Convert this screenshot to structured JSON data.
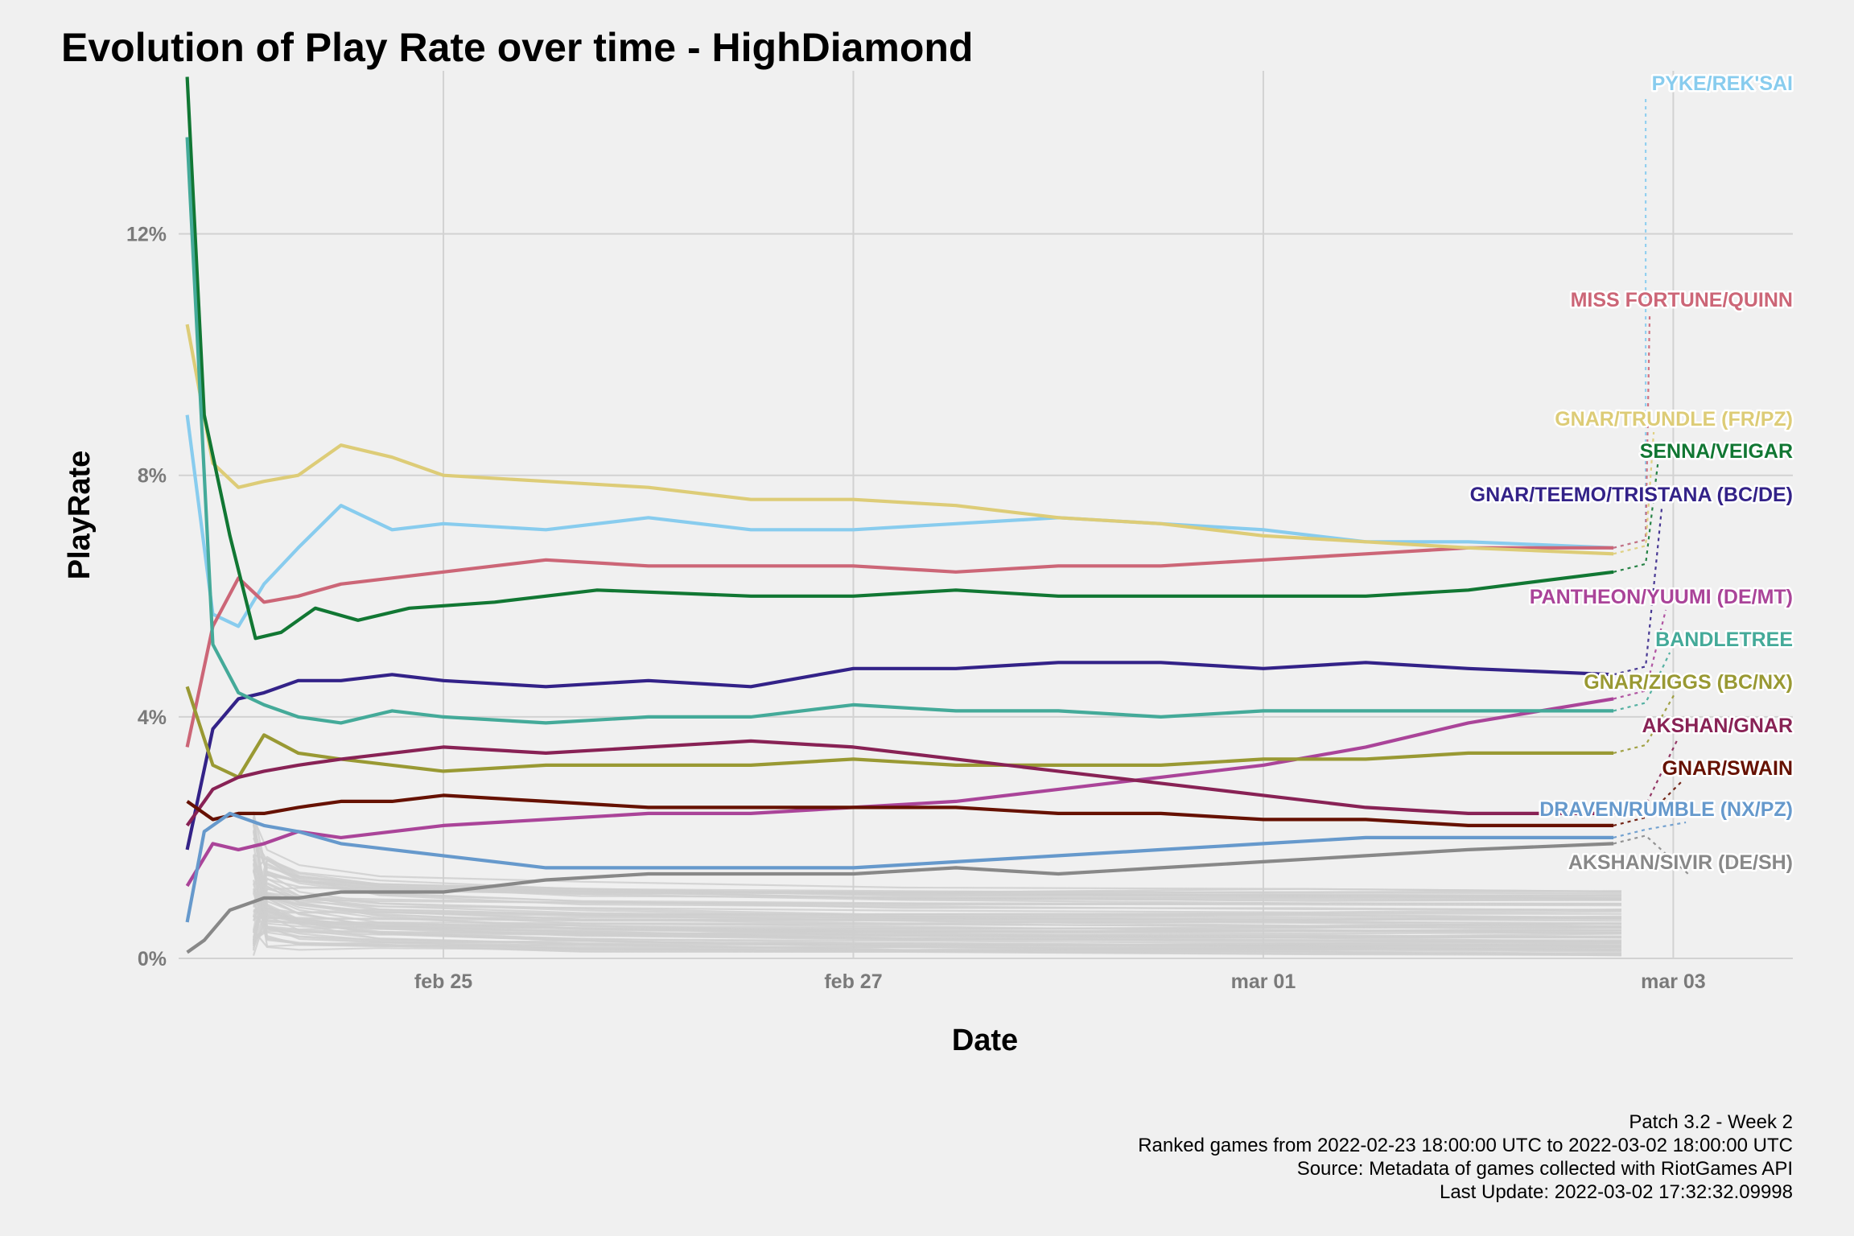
{
  "chart_data": {
    "type": "line",
    "title": "Evolution of Play Rate over time - HighDiamond",
    "xlabel": "Date",
    "ylabel": "PlayRate",
    "x_ticks": [
      "feb 25",
      "feb 27",
      "mar 01",
      "mar 03"
    ],
    "x_tick_dates": [
      "2022-02-25",
      "2022-02-27",
      "2022-03-01",
      "2022-03-03"
    ],
    "xlim": [
      "2022-02-23 17:00",
      "2022-03-03 14:00"
    ],
    "y_ticks": [
      "0%",
      "4%",
      "8%",
      "12%"
    ],
    "y_tick_values": [
      0,
      4,
      8,
      12
    ],
    "ylim": [
      0,
      14.7
    ],
    "grid": true,
    "legend": "direct labels at right",
    "series": [
      {
        "name": "PYKE/REK'SAI",
        "color": "#88ccee",
        "x": [
          "2022-02-23 18:00",
          "2022-02-23 21:00",
          "2022-02-24 00:00",
          "2022-02-24 03:00",
          "2022-02-24 07:00",
          "2022-02-24 12:00",
          "2022-02-24 18:00",
          "2022-02-25 00:00",
          "2022-02-25 12:00",
          "2022-02-26 00:00",
          "2022-02-26 12:00",
          "2022-02-27 00:00",
          "2022-02-27 12:00",
          "2022-02-28 00:00",
          "2022-02-28 12:00",
          "2022-03-01 00:00",
          "2022-03-01 12:00",
          "2022-03-02 00:00",
          "2022-03-02 17:00"
        ],
        "y": [
          9.0,
          5.7,
          5.5,
          6.2,
          6.8,
          7.5,
          7.1,
          7.2,
          7.1,
          7.3,
          7.1,
          7.1,
          7.2,
          7.3,
          7.2,
          7.1,
          6.9,
          6.9,
          6.8
        ]
      },
      {
        "name": "MISS FORTUNE/QUINN",
        "color": "#cc6677",
        "x": [
          "2022-02-23 18:00",
          "2022-02-23 21:00",
          "2022-02-24 00:00",
          "2022-02-24 03:00",
          "2022-02-24 07:00",
          "2022-02-24 12:00",
          "2022-02-24 18:00",
          "2022-02-25 00:00",
          "2022-02-25 12:00",
          "2022-02-26 00:00",
          "2022-02-26 12:00",
          "2022-02-27 00:00",
          "2022-02-27 12:00",
          "2022-02-28 00:00",
          "2022-02-28 12:00",
          "2022-03-01 00:00",
          "2022-03-01 12:00",
          "2022-03-02 00:00",
          "2022-03-02 17:00"
        ],
        "y": [
          3.5,
          5.5,
          6.3,
          5.9,
          6.0,
          6.2,
          6.3,
          6.4,
          6.6,
          6.5,
          6.5,
          6.5,
          6.4,
          6.5,
          6.5,
          6.6,
          6.7,
          6.8,
          6.8
        ]
      },
      {
        "name": "GNAR/TRUNDLE (FR/PZ)",
        "color": "#ddcc77",
        "x": [
          "2022-02-23 18:00",
          "2022-02-23 21:00",
          "2022-02-24 00:00",
          "2022-02-24 03:00",
          "2022-02-24 07:00",
          "2022-02-24 12:00",
          "2022-02-24 18:00",
          "2022-02-25 00:00",
          "2022-02-25 12:00",
          "2022-02-26 00:00",
          "2022-02-26 12:00",
          "2022-02-27 00:00",
          "2022-02-27 12:00",
          "2022-02-28 00:00",
          "2022-02-28 12:00",
          "2022-03-01 00:00",
          "2022-03-01 12:00",
          "2022-03-02 00:00",
          "2022-03-02 17:00"
        ],
        "y": [
          10.5,
          8.2,
          7.8,
          7.9,
          8.0,
          8.5,
          8.3,
          8.0,
          7.9,
          7.8,
          7.6,
          7.6,
          7.5,
          7.3,
          7.2,
          7.0,
          6.9,
          6.8,
          6.7
        ]
      },
      {
        "name": "SENNA/VEIGAR",
        "color": "#117733",
        "x": [
          "2022-02-23 18:00",
          "2022-02-23 20:00",
          "2022-02-23 23:00",
          "2022-02-24 02:00",
          "2022-02-24 05:00",
          "2022-02-24 09:00",
          "2022-02-24 14:00",
          "2022-02-24 20:00",
          "2022-02-25 06:00",
          "2022-02-25 18:00",
          "2022-02-26 12:00",
          "2022-02-27 00:00",
          "2022-02-27 12:00",
          "2022-02-28 00:00",
          "2022-02-28 12:00",
          "2022-03-01 00:00",
          "2022-03-01 12:00",
          "2022-03-02 00:00",
          "2022-03-02 17:00"
        ],
        "y": [
          14.6,
          9.0,
          7.0,
          5.3,
          5.4,
          5.8,
          5.6,
          5.8,
          5.9,
          6.1,
          6.0,
          6.0,
          6.1,
          6.0,
          6.0,
          6.0,
          6.0,
          6.1,
          6.4
        ]
      },
      {
        "name": "GNAR/TEEMO/TRISTANA (BC/DE)",
        "color": "#332288",
        "x": [
          "2022-02-23 18:00",
          "2022-02-23 21:00",
          "2022-02-24 00:00",
          "2022-02-24 03:00",
          "2022-02-24 07:00",
          "2022-02-24 12:00",
          "2022-02-24 18:00",
          "2022-02-25 00:00",
          "2022-02-25 12:00",
          "2022-02-26 00:00",
          "2022-02-26 12:00",
          "2022-02-27 00:00",
          "2022-02-27 12:00",
          "2022-02-28 00:00",
          "2022-02-28 12:00",
          "2022-03-01 00:00",
          "2022-03-01 12:00",
          "2022-03-02 00:00",
          "2022-03-02 17:00"
        ],
        "y": [
          1.8,
          3.8,
          4.3,
          4.4,
          4.6,
          4.6,
          4.7,
          4.6,
          4.5,
          4.6,
          4.5,
          4.8,
          4.8,
          4.9,
          4.9,
          4.8,
          4.9,
          4.8,
          4.7
        ]
      },
      {
        "name": "PANTHEON/YUUMI (DE/MT)",
        "color": "#aa4499",
        "x": [
          "2022-02-23 18:00",
          "2022-02-23 21:00",
          "2022-02-24 00:00",
          "2022-02-24 03:00",
          "2022-02-24 07:00",
          "2022-02-24 12:00",
          "2022-02-24 18:00",
          "2022-02-25 00:00",
          "2022-02-25 12:00",
          "2022-02-26 00:00",
          "2022-02-26 12:00",
          "2022-02-27 00:00",
          "2022-02-27 12:00",
          "2022-02-28 00:00",
          "2022-02-28 12:00",
          "2022-03-01 00:00",
          "2022-03-01 12:00",
          "2022-03-02 00:00",
          "2022-03-02 17:00"
        ],
        "y": [
          1.2,
          1.9,
          1.8,
          1.9,
          2.1,
          2.0,
          2.1,
          2.2,
          2.3,
          2.4,
          2.4,
          2.5,
          2.6,
          2.8,
          3.0,
          3.2,
          3.5,
          3.9,
          4.3
        ]
      },
      {
        "name": "BANDLETREE",
        "color": "#44aa99",
        "x": [
          "2022-02-23 18:00",
          "2022-02-23 21:00",
          "2022-02-24 00:00",
          "2022-02-24 03:00",
          "2022-02-24 07:00",
          "2022-02-24 12:00",
          "2022-02-24 18:00",
          "2022-02-25 00:00",
          "2022-02-25 12:00",
          "2022-02-26 00:00",
          "2022-02-26 12:00",
          "2022-02-27 00:00",
          "2022-02-27 12:00",
          "2022-02-28 00:00",
          "2022-02-28 12:00",
          "2022-03-01 00:00",
          "2022-03-01 12:00",
          "2022-03-02 00:00",
          "2022-03-02 17:00"
        ],
        "y": [
          13.6,
          5.2,
          4.4,
          4.2,
          4.0,
          3.9,
          4.1,
          4.0,
          3.9,
          4.0,
          4.0,
          4.2,
          4.1,
          4.1,
          4.0,
          4.1,
          4.1,
          4.1,
          4.1
        ]
      },
      {
        "name": "GNAR/ZIGGS (BC/NX)",
        "color": "#999933",
        "x": [
          "2022-02-23 18:00",
          "2022-02-23 21:00",
          "2022-02-24 00:00",
          "2022-02-24 03:00",
          "2022-02-24 07:00",
          "2022-02-24 12:00",
          "2022-02-24 18:00",
          "2022-02-25 00:00",
          "2022-02-25 12:00",
          "2022-02-26 00:00",
          "2022-02-26 12:00",
          "2022-02-27 00:00",
          "2022-02-27 12:00",
          "2022-02-28 00:00",
          "2022-02-28 12:00",
          "2022-03-01 00:00",
          "2022-03-01 12:00",
          "2022-03-02 00:00",
          "2022-03-02 17:00"
        ],
        "y": [
          4.5,
          3.2,
          3.0,
          3.7,
          3.4,
          3.3,
          3.2,
          3.1,
          3.2,
          3.2,
          3.2,
          3.3,
          3.2,
          3.2,
          3.2,
          3.3,
          3.3,
          3.4,
          3.4
        ]
      },
      {
        "name": "AKSHAN/GNAR",
        "color": "#882255",
        "x": [
          "2022-02-23 18:00",
          "2022-02-23 21:00",
          "2022-02-24 00:00",
          "2022-02-24 03:00",
          "2022-02-24 07:00",
          "2022-02-24 12:00",
          "2022-02-24 18:00",
          "2022-02-25 00:00",
          "2022-02-25 12:00",
          "2022-02-26 00:00",
          "2022-02-26 12:00",
          "2022-02-27 00:00",
          "2022-02-27 12:00",
          "2022-02-28 00:00",
          "2022-02-28 12:00",
          "2022-03-01 00:00",
          "2022-03-01 12:00",
          "2022-03-02 00:00",
          "2022-03-02 17:00"
        ],
        "y": [
          2.2,
          2.8,
          3.0,
          3.1,
          3.2,
          3.3,
          3.4,
          3.5,
          3.4,
          3.5,
          3.6,
          3.5,
          3.3,
          3.1,
          2.9,
          2.7,
          2.5,
          2.4,
          2.4
        ]
      },
      {
        "name": "GNAR/SWAIN",
        "color": "#661100",
        "x": [
          "2022-02-23 18:00",
          "2022-02-23 21:00",
          "2022-02-24 00:00",
          "2022-02-24 03:00",
          "2022-02-24 07:00",
          "2022-02-24 12:00",
          "2022-02-24 18:00",
          "2022-02-25 00:00",
          "2022-02-25 12:00",
          "2022-02-26 00:00",
          "2022-02-26 12:00",
          "2022-02-27 00:00",
          "2022-02-27 12:00",
          "2022-02-28 00:00",
          "2022-02-28 12:00",
          "2022-03-01 00:00",
          "2022-03-01 12:00",
          "2022-03-02 00:00",
          "2022-03-02 17:00"
        ],
        "y": [
          2.6,
          2.3,
          2.4,
          2.4,
          2.5,
          2.6,
          2.6,
          2.7,
          2.6,
          2.5,
          2.5,
          2.5,
          2.5,
          2.4,
          2.4,
          2.3,
          2.3,
          2.2,
          2.2
        ]
      },
      {
        "name": "DRAVEN/RUMBLE (NX/PZ)",
        "color": "#6699cc",
        "x": [
          "2022-02-23 18:00",
          "2022-02-23 20:00",
          "2022-02-23 23:00",
          "2022-02-24 03:00",
          "2022-02-24 07:00",
          "2022-02-24 12:00",
          "2022-02-24 18:00",
          "2022-02-25 00:00",
          "2022-02-25 12:00",
          "2022-02-26 00:00",
          "2022-02-26 12:00",
          "2022-02-27 00:00",
          "2022-02-27 12:00",
          "2022-02-28 00:00",
          "2022-02-28 12:00",
          "2022-03-01 00:00",
          "2022-03-01 12:00",
          "2022-03-02 00:00",
          "2022-03-02 17:00"
        ],
        "y": [
          0.6,
          2.1,
          2.4,
          2.2,
          2.1,
          1.9,
          1.8,
          1.7,
          1.5,
          1.5,
          1.5,
          1.5,
          1.6,
          1.7,
          1.8,
          1.9,
          2.0,
          2.0,
          2.0
        ]
      },
      {
        "name": "AKSHAN/SIVIR (DE/SH)",
        "color": "#888888",
        "x": [
          "2022-02-23 18:00",
          "2022-02-23 20:00",
          "2022-02-23 23:00",
          "2022-02-24 03:00",
          "2022-02-24 07:00",
          "2022-02-24 12:00",
          "2022-02-24 18:00",
          "2022-02-25 00:00",
          "2022-02-25 12:00",
          "2022-02-26 00:00",
          "2022-02-26 12:00",
          "2022-02-27 00:00",
          "2022-02-27 12:00",
          "2022-02-28 00:00",
          "2022-02-28 12:00",
          "2022-03-01 00:00",
          "2022-03-01 12:00",
          "2022-03-02 00:00",
          "2022-03-02 17:00"
        ],
        "y": [
          0.1,
          0.3,
          0.8,
          1.0,
          1.0,
          1.1,
          1.1,
          1.1,
          1.3,
          1.4,
          1.4,
          1.4,
          1.5,
          1.4,
          1.5,
          1.6,
          1.7,
          1.8,
          1.9
        ]
      }
    ]
  },
  "footer": {
    "line1": "Patch 3.2 - Week 2",
    "line2": "Ranked games from 2022-02-23 18:00:00 UTC to 2022-03-02 18:00:00 UTC",
    "line3": "Source: Metadata of games collected with RiotGames API",
    "line4": "Last Update: 2022-03-02 17:32:32.09998"
  },
  "colors": {
    "background": "#f0f0f0",
    "grid": "#d2d2d2",
    "other_series": "#cfcfcf"
  }
}
